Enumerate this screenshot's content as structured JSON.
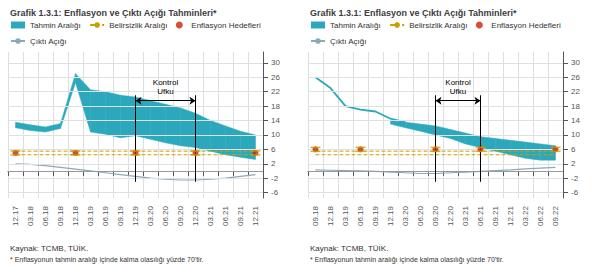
{
  "chart_data": [
    {
      "type": "line",
      "title": "Grafik 1.3.1: Enflasyon ve Çıktı Açığı Tahminleri*",
      "source": "Kaynak: TCMB, TÜİK.",
      "footnote": "* Enflasyonun tahmin aralığı içinde kalma olasılığı yüzdе 70'tir.",
      "categories": [
        "12.17",
        "03.18",
        "06.18",
        "09.18",
        "12.18",
        "03.19",
        "06.19",
        "09.19",
        "12.19",
        "03.20",
        "06.20",
        "09.20",
        "12.20",
        "03.21",
        "06.21",
        "09.21",
        "12.21"
      ],
      "ylim": [
        -7.5,
        33
      ],
      "yticks": [
        -6,
        -2,
        2,
        6,
        10,
        14,
        18,
        22,
        26,
        30
      ],
      "grid": true,
      "legend": "top",
      "reference_lines": [
        0
      ],
      "series": [
        {
          "name": "Tahmin Aralığı",
          "type": "band",
          "color": "#2ba8bc",
          "upper": [
            13.5,
            12.8,
            12.2,
            13.2,
            27.0,
            22.5,
            22.0,
            21.0,
            20.5,
            19.5,
            18.5,
            17.5,
            16.0,
            14.0,
            12.5,
            11.0,
            10.0
          ],
          "lower": [
            12.0,
            11.2,
            10.8,
            11.8,
            24.5,
            10.8,
            10.2,
            9.2,
            9.8,
            8.8,
            7.8,
            7.0,
            6.5,
            5.5,
            4.5,
            3.8,
            3.2
          ]
        },
        {
          "name": "Belirsizlik Aralığı",
          "type": "band_lines",
          "color": "#c8a000",
          "line_style": "dashed",
          "upper": [
            5.5,
            5.5,
            5.5,
            5.5,
            5.5,
            5.5,
            5.5,
            5.5,
            5.5,
            5.5,
            5.5,
            5.5,
            5.5,
            5.5,
            5.5,
            5.5,
            5.5
          ],
          "lower": [
            4.5,
            4.5,
            4.5,
            4.5,
            4.5,
            4.5,
            4.5,
            4.5,
            4.5,
            4.5,
            4.5,
            4.5,
            4.5,
            4.5,
            4.5,
            4.5,
            4.5
          ]
        },
        {
          "name": "Enflasyon Hedefleri",
          "type": "scatter",
          "color": "#cc2200",
          "marker": "circle",
          "values": [
            5.0,
            null,
            null,
            null,
            5.0,
            null,
            null,
            null,
            5.0,
            null,
            null,
            null,
            5.0,
            null,
            null,
            null,
            5.0
          ]
        },
        {
          "name": "Çıktı Açığı",
          "type": "line",
          "color": "#8aaabb",
          "values": [
            2.0,
            1.8,
            1.5,
            1.0,
            0.5,
            0.0,
            -0.5,
            -1.0,
            -1.5,
            -2.0,
            -2.3,
            -2.5,
            -2.5,
            -2.3,
            -2.0,
            -1.5,
            -1.0
          ]
        },
        {
          "type": "range_ticks",
          "color": "#c8a000",
          "upper": [
            5.55,
            null,
            null,
            null,
            5.55,
            null,
            null,
            null,
            5.55,
            null,
            null,
            null,
            5.55,
            null,
            null,
            null,
            5.55
          ],
          "lower": [
            4.45,
            null,
            null,
            null,
            4.45,
            null,
            null,
            null,
            4.45,
            null,
            null,
            null,
            4.45,
            null,
            null,
            null,
            4.45
          ]
        }
      ],
      "annotations": [
        {
          "text": "Kontrol\nUfku",
          "x_start": "12.19",
          "x_end": "12.20",
          "y_start": -3,
          "y_end": 21,
          "arrow_y": 19.5,
          "text_y": 20.5
        }
      ]
    },
    {
      "type": "line",
      "title": "Grafik 1.3.1: Enflasyon ve Çıktı Açığı Tahminleri*",
      "source": "Kaynak: TCMB, TÜİK.",
      "footnote": "* Enflasyonun tahmin aralığı içinde kalma olasılığı yüzdе 70'tir.",
      "categories": [
        "09.18",
        "12.18",
        "03.19",
        "06.19",
        "09.19",
        "12.19",
        "03.20",
        "06.20",
        "09.20",
        "12.20",
        "03.21",
        "06.21",
        "09.21",
        "12.21",
        "03.22",
        "06.22",
        "09.22"
      ],
      "ylim": [
        -7.5,
        33
      ],
      "yticks": [
        -6,
        -2,
        2,
        6,
        10,
        14,
        18,
        22,
        26,
        30
      ],
      "grid": true,
      "legend": "top",
      "reference_lines": [
        0
      ],
      "series": [
        {
          "type": "line",
          "color": "#2ba8bc",
          "values": [
            26.0,
            23.0,
            18.0,
            17.0,
            16.5,
            14.5,
            13.5,
            null,
            null,
            null,
            null,
            null,
            null,
            null,
            null,
            null,
            null
          ]
        },
        {
          "name": "Tahmin Aralığı",
          "type": "band",
          "color": "#2ba8bc",
          "upper": [
            null,
            null,
            null,
            null,
            null,
            14.0,
            13.5,
            13.0,
            12.5,
            11.5,
            10.5,
            9.5,
            9.0,
            8.5,
            8.0,
            7.5,
            7.0
          ],
          "lower": [
            null,
            null,
            null,
            null,
            null,
            13.0,
            12.0,
            11.0,
            10.0,
            9.0,
            7.5,
            6.5,
            5.5,
            4.5,
            3.5,
            3.0,
            3.0
          ]
        },
        {
          "name": "Belirsizlik Aralığı",
          "type": "band_lines",
          "color": "#c8a000",
          "line_style": "dashed",
          "upper": [
            5.5,
            5.5,
            5.5,
            5.5,
            5.5,
            5.5,
            5.5,
            5.5,
            5.5,
            5.5,
            5.5,
            5.5,
            5.5,
            5.5,
            5.5,
            5.5,
            5.5
          ],
          "lower": [
            4.5,
            4.5,
            4.5,
            4.5,
            4.5,
            4.5,
            4.5,
            4.5,
            4.5,
            4.5,
            4.5,
            4.5,
            4.5,
            4.5,
            4.5,
            4.5,
            4.5
          ]
        },
        {
          "name": "Enflasyon Hedefleri",
          "type": "scatter",
          "color": "#cc2200",
          "marker": "circle",
          "values": [
            6.0,
            null,
            null,
            6.0,
            null,
            null,
            null,
            null,
            6.0,
            null,
            null,
            6.0,
            null,
            null,
            null,
            null,
            6.0
          ]
        },
        {
          "name": "Çıktı Açığı",
          "type": "line",
          "color": "#8aaabb",
          "values": [
            0.3,
            0.2,
            0.1,
            0.0,
            -0.1,
            -0.3,
            -0.5,
            -0.7,
            -0.7,
            -0.5,
            -0.3,
            -0.1,
            0.1,
            0.3,
            0.6,
            0.8,
            1.0
          ]
        },
        {
          "type": "range_ticks",
          "color": "#c8a000",
          "upper": [
            6.55,
            null,
            null,
            6.55,
            null,
            null,
            null,
            null,
            6.55,
            null,
            null,
            6.55,
            null,
            null,
            null,
            null,
            6.55
          ],
          "lower": [
            5.45,
            null,
            null,
            5.45,
            null,
            null,
            null,
            null,
            5.45,
            null,
            null,
            5.45,
            null,
            null,
            null,
            null,
            5.45
          ]
        }
      ],
      "annotations": [
        {
          "text": "Kontrol\nUfku",
          "x_start": "09.20",
          "x_end": "06.21",
          "y_start": -3,
          "y_end": 21,
          "arrow_y": 19.5,
          "text_y": 20.5
        }
      ]
    }
  ]
}
